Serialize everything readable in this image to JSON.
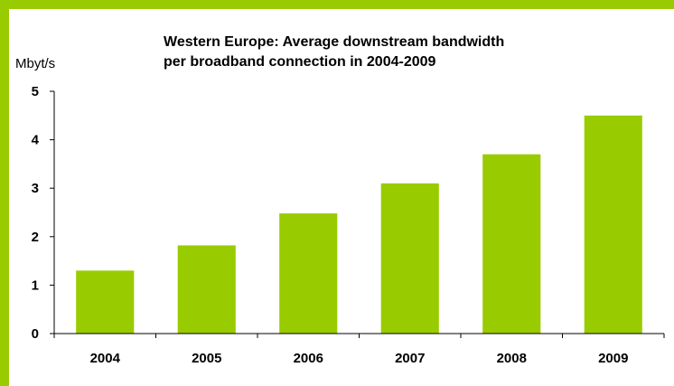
{
  "chart_data": {
    "type": "bar",
    "title_lines": [
      "Western Europe: Average downstream bandwidth",
      "per broadband connection in  2004-2009"
    ],
    "ylabel": "Mbyt/s",
    "xlabel": "",
    "categories": [
      "2004",
      "2005",
      "2006",
      "2007",
      "2008",
      "2009"
    ],
    "values": [
      1.3,
      1.82,
      2.48,
      3.1,
      3.7,
      4.5
    ],
    "ylim": [
      0,
      5
    ],
    "yticks": [
      "0",
      "1",
      "2",
      "3",
      "4",
      "5"
    ],
    "grid": false,
    "legend": "none",
    "bar_color": "#99cc00",
    "frame_color": "#99cc00"
  }
}
